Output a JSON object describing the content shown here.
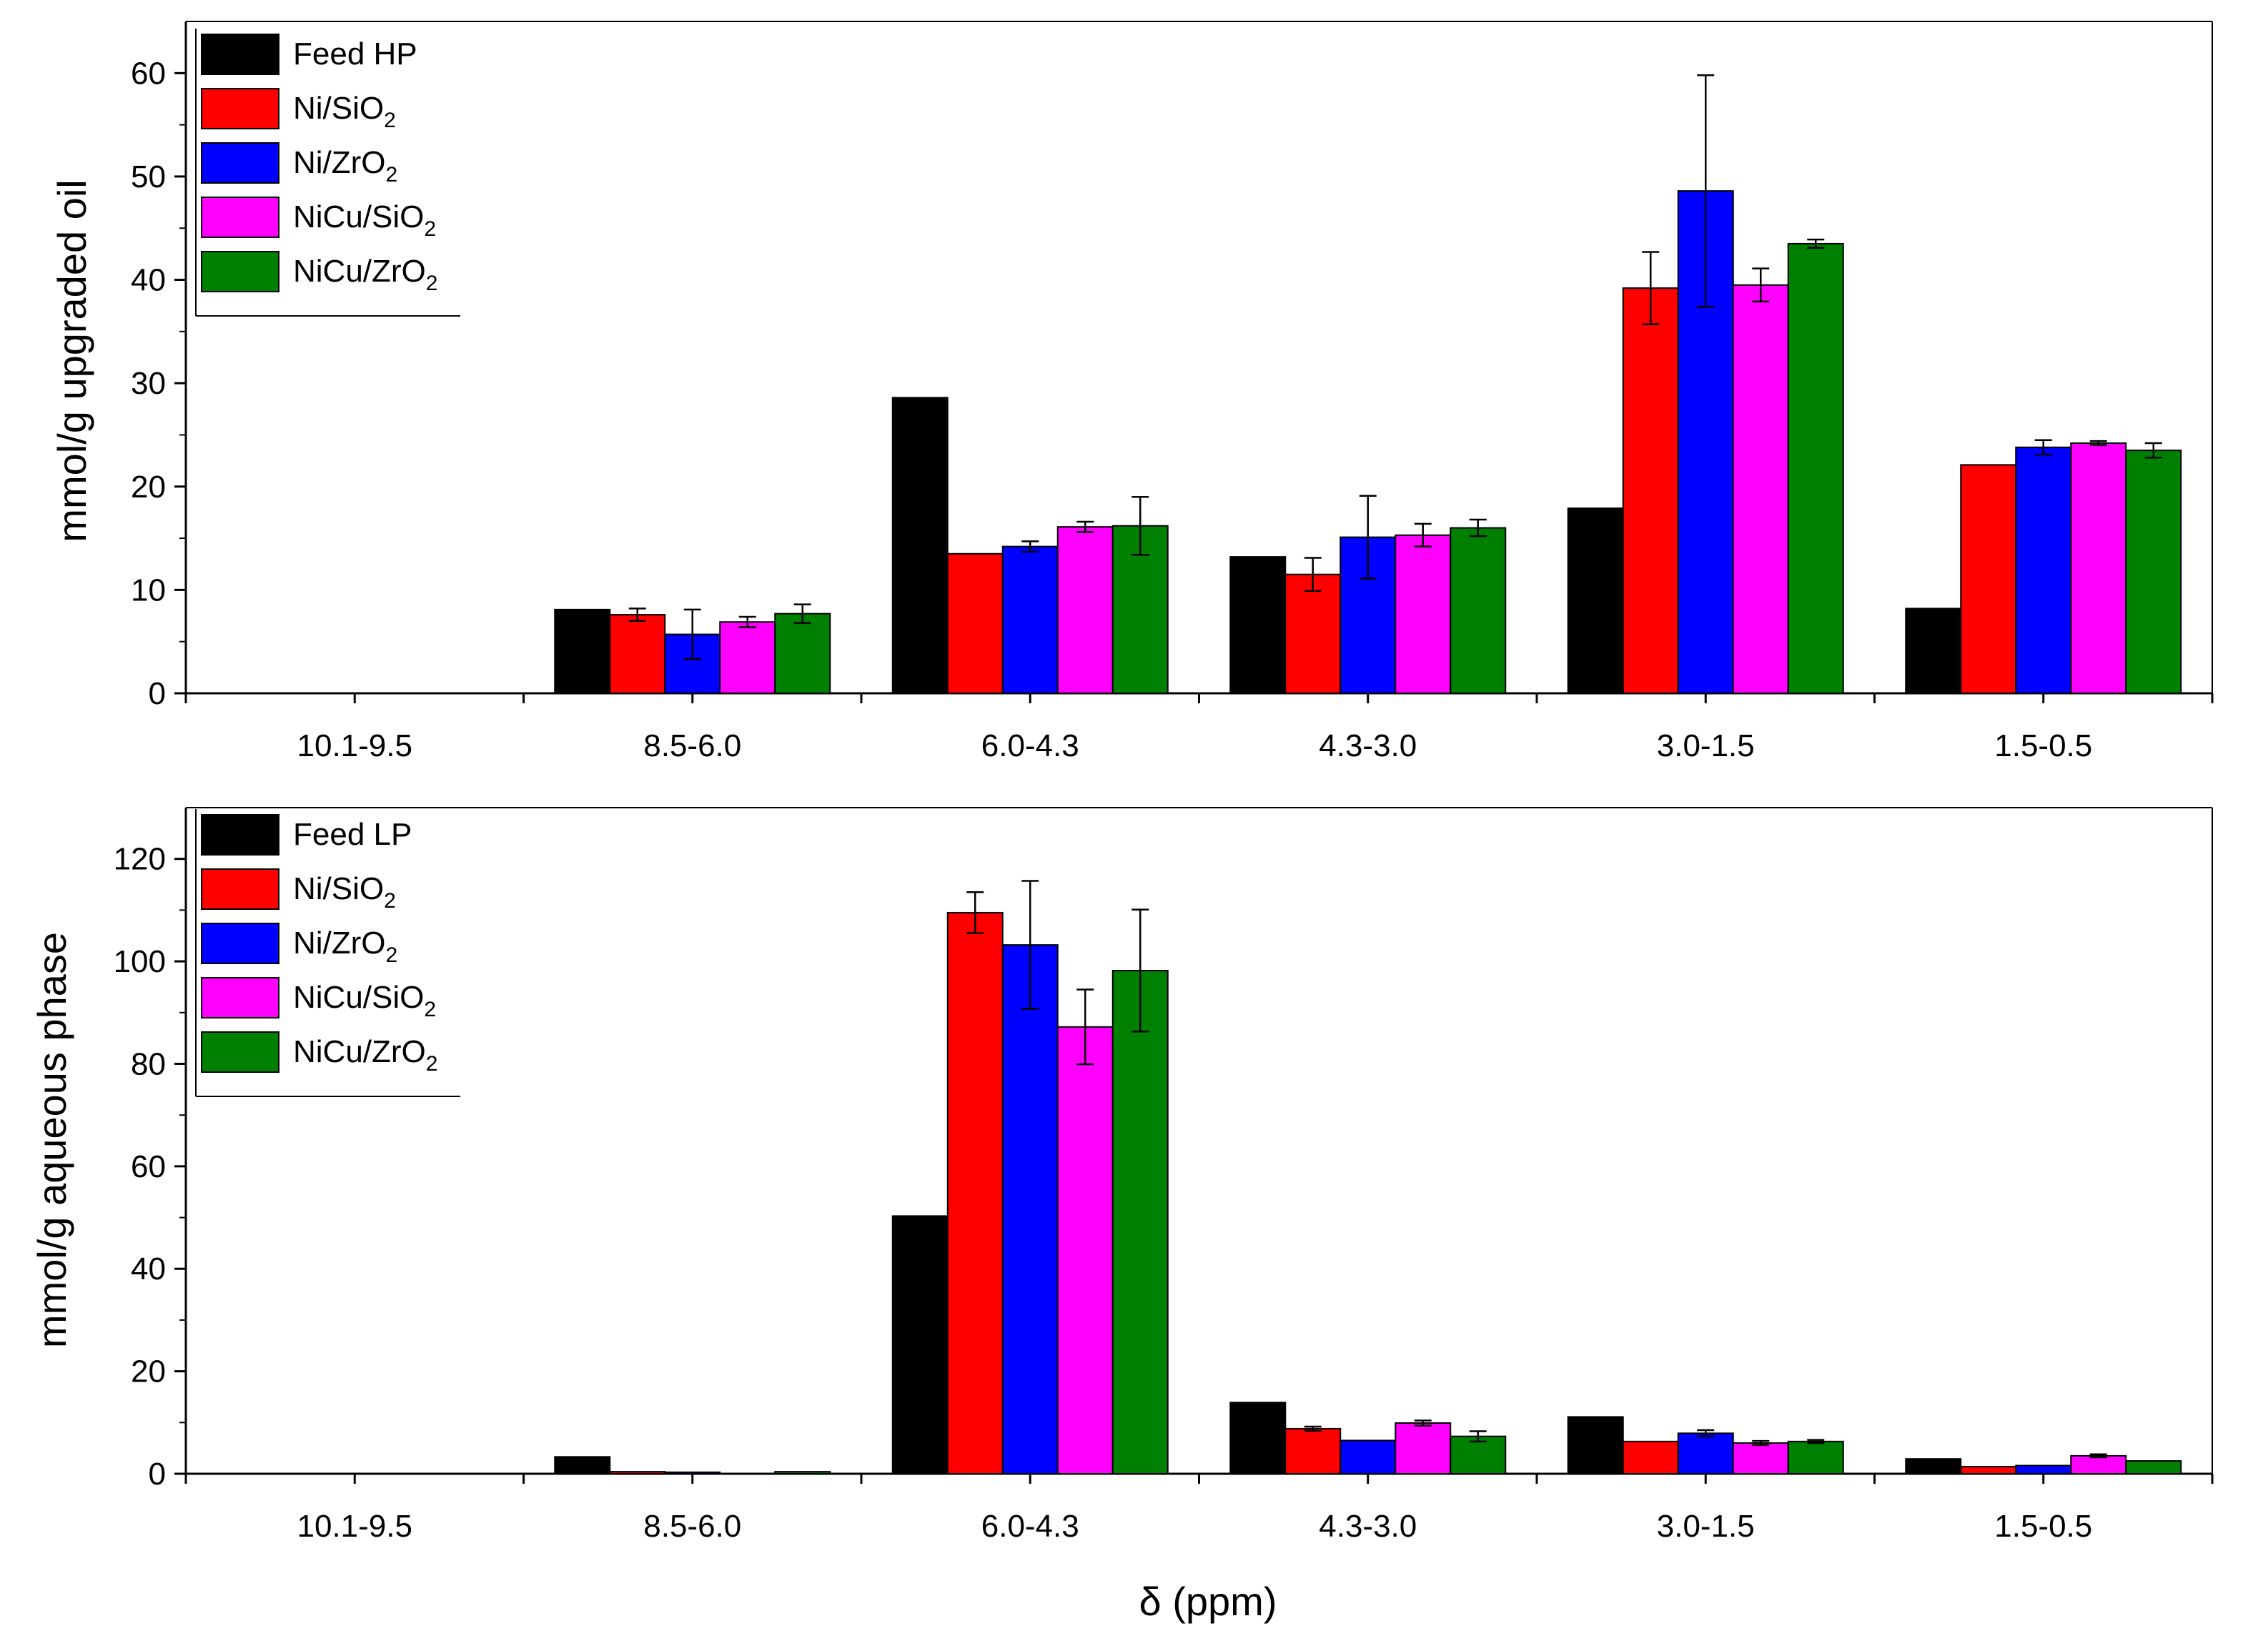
{
  "chart_data": [
    {
      "type": "bar",
      "id": "upper",
      "categories": [
        "10.1-9.5",
        "8.5-6.0",
        "6.0-4.3",
        "4.3-3.0",
        "3.0-1.5",
        "1.5-0.5"
      ],
      "ylabel": "mmol/g upgraded oil",
      "xlabel": "",
      "ylim": [
        0,
        65
      ],
      "yticks": [
        0,
        10,
        20,
        30,
        40,
        50,
        60
      ],
      "legend_position": "top-left",
      "series": [
        {
          "name": "Feed HP",
          "label_main": "Feed HP",
          "label_sub": "",
          "label_tail": "",
          "color": "#000000",
          "values": [
            0,
            8.1,
            28.6,
            13.2,
            17.9,
            8.2
          ],
          "errors": [
            0,
            0,
            0,
            0,
            0,
            0
          ]
        },
        {
          "name": "Ni/SiO2",
          "label_main": "Ni/SiO",
          "label_sub": "2",
          "label_tail": "",
          "color": "#ff0000",
          "values": [
            0,
            7.6,
            13.5,
            11.5,
            39.2,
            22.1
          ],
          "errors": [
            0,
            0.6,
            0,
            1.6,
            3.5,
            0
          ]
        },
        {
          "name": "Ni/ZrO2",
          "label_main": "Ni/ZrO",
          "label_sub": "2",
          "label_tail": "",
          "color": "#0000ff",
          "values": [
            0,
            5.7,
            14.2,
            15.1,
            48.6,
            23.8
          ],
          "errors": [
            0,
            2.4,
            0.5,
            4.0,
            11.2,
            0.7
          ]
        },
        {
          "name": "NiCu/SiO2",
          "label_main": "NiCu/SiO",
          "label_sub": "2",
          "label_tail": "",
          "color": "#ff00ff",
          "values": [
            0,
            6.9,
            16.1,
            15.3,
            39.5,
            24.2
          ],
          "errors": [
            0,
            0.5,
            0.5,
            1.1,
            1.6,
            0.2
          ]
        },
        {
          "name": "NiCu/ZrO2",
          "label_main": "NiCu/ZrO",
          "label_sub": "2",
          "label_tail": "",
          "color": "#008000",
          "values": [
            0,
            7.7,
            16.2,
            16.0,
            43.5,
            23.5
          ],
          "errors": [
            0,
            0.9,
            2.8,
            0.8,
            0.4,
            0.7
          ]
        }
      ]
    },
    {
      "type": "bar",
      "id": "lower",
      "categories": [
        "10.1-9.5",
        "8.5-6.0",
        "6.0-4.3",
        "4.3-3.0",
        "3.0-1.5",
        "1.5-0.5"
      ],
      "ylabel": "mmol/g aqueous phase",
      "xlabel": "δ (ppm)",
      "ylim": [
        0,
        130
      ],
      "yticks": [
        0,
        20,
        40,
        60,
        80,
        100,
        120
      ],
      "legend_position": "top-left",
      "series": [
        {
          "name": "Feed LP",
          "label_main": "Feed LP",
          "label_sub": "",
          "label_tail": "",
          "color": "#000000",
          "values": [
            0,
            3.3,
            50.3,
            13.9,
            11.1,
            2.9
          ],
          "errors": [
            0,
            0,
            0,
            0,
            0,
            0
          ]
        },
        {
          "name": "Ni/SiO2",
          "label_main": "Ni/SiO",
          "label_sub": "2",
          "label_tail": "",
          "color": "#ff0000",
          "values": [
            0,
            0.4,
            109.5,
            8.8,
            6.3,
            1.4
          ],
          "errors": [
            0,
            0,
            4.0,
            0.4,
            0,
            0
          ]
        },
        {
          "name": "Ni/ZrO2",
          "label_main": "Ni/ZrO",
          "label_sub": "2",
          "label_tail": "",
          "color": "#0000ff",
          "values": [
            0,
            0.3,
            103.2,
            6.5,
            7.9,
            1.6
          ],
          "errors": [
            0,
            0,
            12.5,
            0,
            0.6,
            0
          ]
        },
        {
          "name": "NiCu/SiO2",
          "label_main": "NiCu/SiO",
          "label_sub": "2",
          "label_tail": "",
          "color": "#ff00ff",
          "values": [
            0,
            0,
            87.2,
            9.9,
            6.0,
            3.5
          ],
          "errors": [
            0,
            0,
            7.3,
            0.5,
            0.4,
            0.3
          ]
        },
        {
          "name": "NiCu/ZrO2",
          "label_main": "NiCu/ZrO",
          "label_sub": "2",
          "label_tail": "",
          "color": "#008000",
          "values": [
            0,
            0.4,
            98.2,
            7.3,
            6.3,
            2.5
          ],
          "errors": [
            0,
            0,
            11.9,
            1.0,
            0.3,
            0
          ]
        }
      ]
    }
  ]
}
